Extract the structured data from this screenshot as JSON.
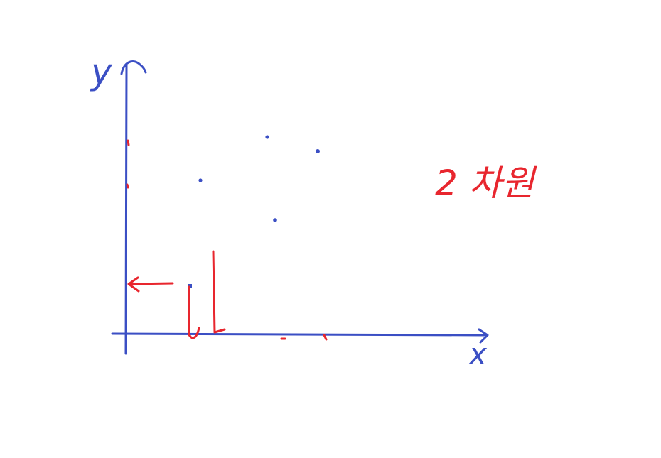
{
  "axes": {
    "x_label": "x",
    "y_label": "y"
  },
  "note": {
    "text": "2 차원"
  },
  "colors": {
    "axis": "#3b4fc4",
    "points": "#3b4fc4",
    "annotation": "#e8262e",
    "background": "#ffffff"
  }
}
